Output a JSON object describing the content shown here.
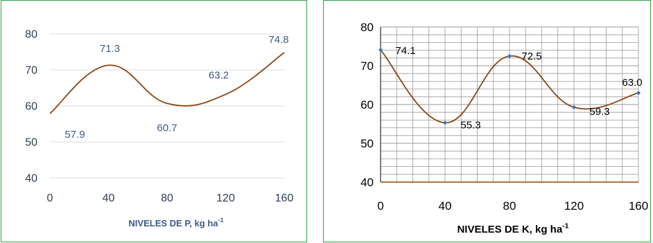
{
  "chart_data": [
    {
      "type": "line",
      "x": [
        0,
        40,
        80,
        120,
        160
      ],
      "series": [
        {
          "values": [
            57.9,
            71.3,
            60.7,
            63.2,
            74.8
          ],
          "data_labels": [
            "57.9",
            "71.3",
            "60.7",
            "63.2",
            "74.8"
          ]
        }
      ],
      "xlabel": "NIVELES DE P, kg ha",
      "xlabel_sup": "-1",
      "ylabel": "",
      "xlim": [
        0,
        160
      ],
      "ylim": [
        40,
        80
      ],
      "xticks": [
        "0",
        "40",
        "80",
        "120",
        "160"
      ],
      "yticks": [
        "40",
        "50",
        "60",
        "70",
        "80"
      ],
      "grid": "horizontal",
      "smoothed": true,
      "markers": false,
      "line_color": "#8b4513",
      "grid_color": "#d9dce3",
      "tick_color": "#2f3c5a",
      "label_color": "#3b5b8c",
      "title_color": "#3b5b8c"
    },
    {
      "type": "line",
      "x": [
        0,
        40,
        80,
        120,
        160
      ],
      "series": [
        {
          "values": [
            74.1,
            55.3,
            72.5,
            59.3,
            63.0
          ],
          "data_labels": [
            "74.1",
            "55.3",
            "72.5",
            "59.3",
            "63.0"
          ]
        }
      ],
      "xlabel": "NIVELES DE K, kg ha",
      "xlabel_sup": "-1",
      "ylabel": "",
      "xlim": [
        0,
        160
      ],
      "ylim": [
        40,
        80
      ],
      "xticks": [
        "0",
        "40",
        "80",
        "120",
        "160"
      ],
      "yticks": [
        "40",
        "50",
        "60",
        "70",
        "80"
      ],
      "grid": "horizontal-vertical-minor",
      "smoothed": true,
      "markers": true,
      "line_color": "#8b4513",
      "marker_color": "#4472c4",
      "grid_color": "#9a9a9a",
      "axis_color": "#8b4513",
      "tick_color": "#000000",
      "label_color": "#000000",
      "title_color": "#000000"
    }
  ]
}
